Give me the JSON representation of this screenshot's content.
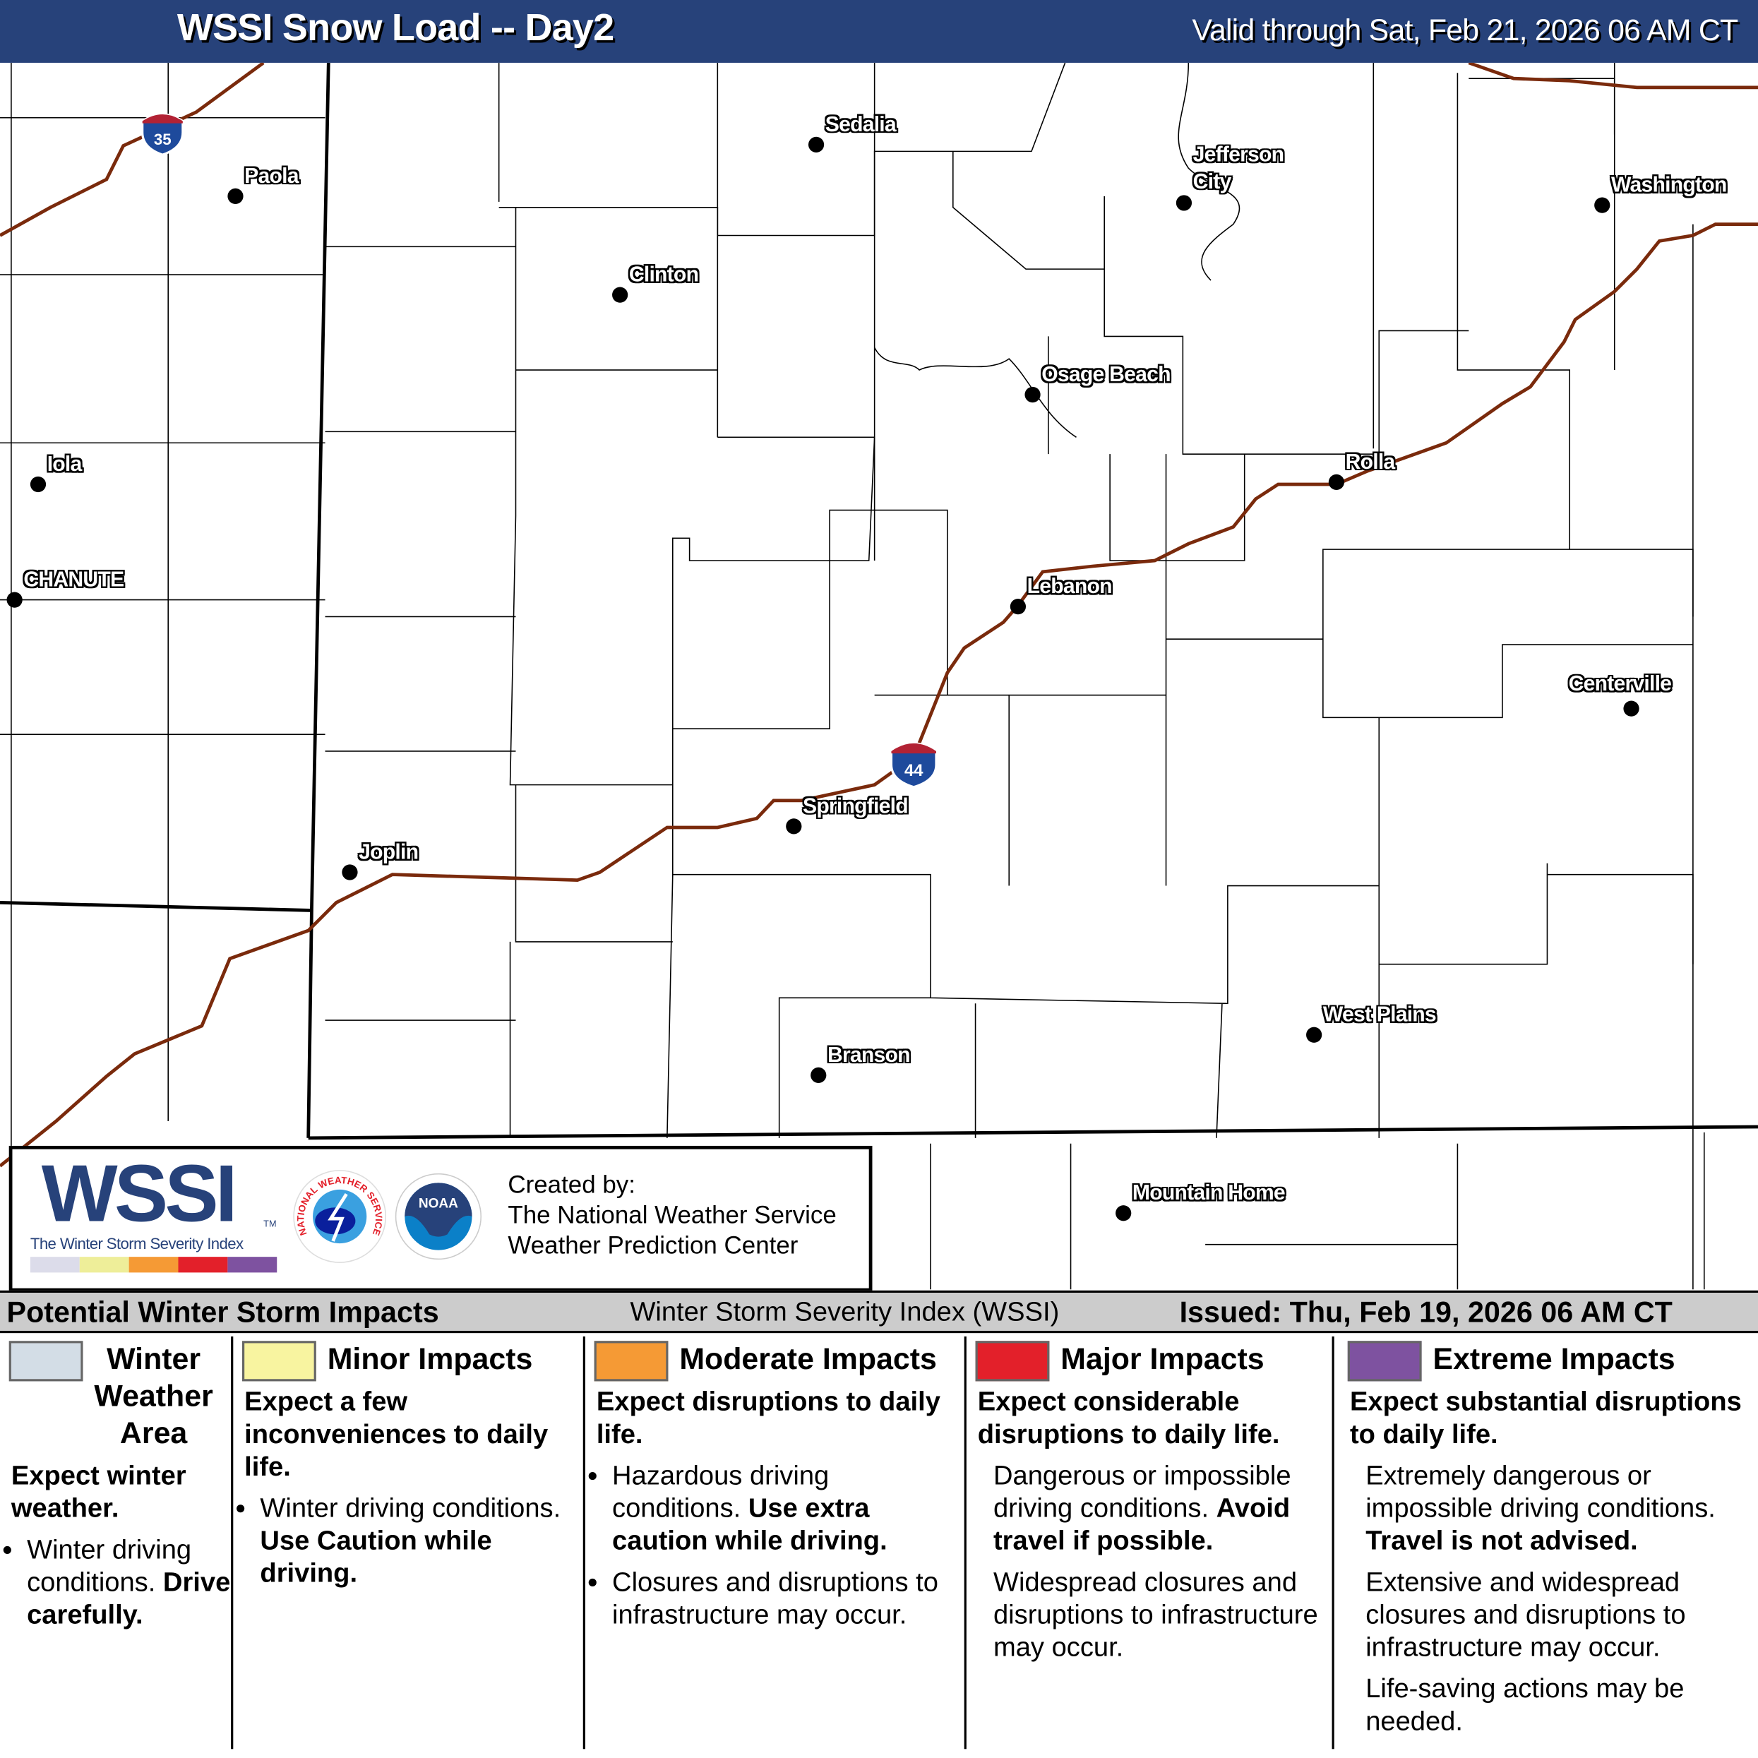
{
  "header": {
    "title": "WSSI Snow Load -- Day2",
    "valid": "Valid through Sat, Feb 21, 2026 06 AM CT"
  },
  "map": {
    "interstates": [
      {
        "label": "35"
      },
      {
        "label": "44"
      }
    ],
    "cities": [
      "Sedalia",
      "Paola",
      "Jefferson City",
      "Washington",
      "Clinton",
      "Osage Beach",
      "Iola",
      "Rolla",
      "CHANUTE",
      "Lebanon",
      "Centerville",
      "Springfield",
      "Joplin",
      "West Plains",
      "Branson",
      "Mountain Home"
    ],
    "colors": {
      "road": "#7a2a0c",
      "state_line": "#000000",
      "county_line": "#000000",
      "background": "#ffffff"
    }
  },
  "logo": {
    "wssi": "WSSI",
    "tm": "TM",
    "subtitle": "The Winter Storm Severity Index",
    "nws": "NATIONAL WEATHER SERVICE",
    "noaa": "NOAA",
    "created_by": "Created by:",
    "org1": "The National Weather Service",
    "org2": "Weather Prediction Center",
    "swatches": [
      "#dcdcea",
      "#eeee99",
      "#f59a35",
      "#e3202a",
      "#7e52a0"
    ]
  },
  "bar": {
    "left": "Potential Winter Storm Impacts",
    "center": "Winter Storm Severity Index (WSSI)",
    "right": "Issued: Thu, Feb 19, 2026 06 AM CT"
  },
  "legend": [
    {
      "color": "#d3dde6",
      "title": [
        "Winter",
        "Weather",
        "Area"
      ],
      "summary": "Expect winter weather.",
      "bullets": [
        {
          "text": "Winter driving conditions.",
          "bold": "Drive carefully."
        }
      ]
    },
    {
      "color": "#f8f4a0",
      "title": [
        "Minor Impacts"
      ],
      "summary": "Expect a few inconveniences to daily life.",
      "bullets": [
        {
          "text": "Winter driving conditions.",
          "bold": "Use Caution while driving."
        }
      ]
    },
    {
      "color": "#f59a35",
      "title": [
        "Moderate Impacts"
      ],
      "summary": "Expect disruptions to daily life.",
      "bullets": [
        {
          "text": "Hazardous driving conditions.",
          "bold": "Use extra caution while driving."
        },
        {
          "text": "Closures and disruptions to infrastructure may occur.",
          "bold": ""
        }
      ]
    },
    {
      "color": "#e3202a",
      "title": [
        "Major Impacts"
      ],
      "summary": "Expect considerable disruptions to daily life.",
      "bullets": [
        {
          "text": "Dangerous or impossible driving conditions.",
          "bold": "Avoid travel if possible."
        },
        {
          "text": "Widespread closures and disruptions to infrastructure may occur.",
          "bold": ""
        }
      ]
    },
    {
      "color": "#7e52a0",
      "title": [
        "Extreme Impacts"
      ],
      "summary": "Expect substantial disruptions to daily life.",
      "bullets": [
        {
          "text": "Extremely dangerous or impossible driving conditions.",
          "bold": "Travel is not advised."
        },
        {
          "text": "Extensive and widespread closures and disruptions to infrastructure may occur.",
          "bold": ""
        },
        {
          "text": "Life-saving actions may be needed.",
          "bold": ""
        }
      ]
    }
  ]
}
